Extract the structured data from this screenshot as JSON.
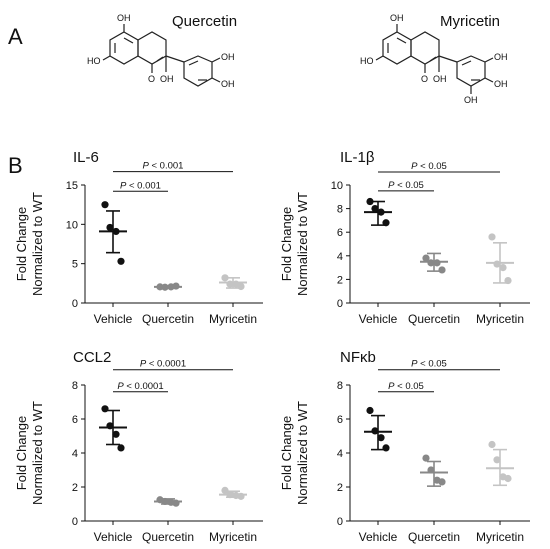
{
  "panels": {
    "a": "A",
    "b": "B"
  },
  "molecules": [
    {
      "name": "Quercetin",
      "atoms": [
        "OH",
        "HO",
        "O",
        "OH",
        "OH",
        "OH"
      ]
    },
    {
      "name": "Myricetin",
      "atoms": [
        "OH",
        "HO",
        "O",
        "OH",
        "OH",
        "OH",
        "OH"
      ]
    }
  ],
  "chart_data": [
    {
      "type": "scatter",
      "title": "IL-6",
      "ylabel": [
        "Fold Change",
        "Normalized to WT"
      ],
      "ylim": [
        0,
        15
      ],
      "yticks": [
        0,
        5,
        10,
        15
      ],
      "categories": [
        "Vehicle",
        "Quercetin",
        "Myricetin"
      ],
      "colors": [
        "#111111",
        "#888888",
        "#c4c4c4"
      ],
      "points": [
        [
          12.5,
          9.6,
          9.1,
          5.3
        ],
        [
          2.05,
          2.0,
          2.05,
          2.15
        ],
        [
          3.2,
          2.4,
          2.4,
          2.1
        ]
      ],
      "mean": [
        9.1,
        2.05,
        2.6
      ],
      "sd_upper": [
        11.7,
        2.2,
        3.2
      ],
      "sd_lower": [
        6.4,
        1.95,
        1.9
      ],
      "brackets": [
        {
          "from": 0,
          "to": 1,
          "y": 14.2,
          "label": "P < 0.001"
        },
        {
          "from": 0,
          "to": 2,
          "y": 16.7,
          "label": "P < 0.001"
        }
      ]
    },
    {
      "type": "scatter",
      "title": "IL-1β",
      "ylabel": [
        "Fold Change",
        "Normalized to WT"
      ],
      "ylim": [
        0,
        10
      ],
      "yticks": [
        0,
        2,
        4,
        6,
        8,
        10
      ],
      "categories": [
        "Vehicle",
        "Quercetin",
        "Myricetin"
      ],
      "colors": [
        "#111111",
        "#888888",
        "#c4c4c4"
      ],
      "points": [
        [
          8.6,
          8.0,
          7.7,
          6.8
        ],
        [
          3.8,
          3.4,
          3.4,
          2.8
        ],
        [
          5.6,
          3.3,
          3.0,
          1.9
        ]
      ],
      "mean": [
        7.7,
        3.5,
        3.4
      ],
      "sd_upper": [
        8.6,
        4.2,
        5.1
      ],
      "sd_lower": [
        6.6,
        2.7,
        1.7
      ],
      "brackets": [
        {
          "from": 0,
          "to": 1,
          "y": 9.5,
          "label": "P < 0.05"
        },
        {
          "from": 0,
          "to": 2,
          "y": 11.1,
          "label": "P < 0.05"
        }
      ]
    },
    {
      "type": "scatter",
      "title": "CCL2",
      "ylabel": [
        "Fold Change",
        "Normalized to WT"
      ],
      "ylim": [
        0,
        8
      ],
      "yticks": [
        0,
        2,
        4,
        6,
        8
      ],
      "categories": [
        "Vehicle",
        "Quercetin",
        "Myricetin"
      ],
      "colors": [
        "#111111",
        "#888888",
        "#c4c4c4"
      ],
      "points": [
        [
          6.6,
          5.6,
          5.1,
          4.3
        ],
        [
          1.25,
          1.15,
          1.1,
          1.05
        ],
        [
          1.8,
          1.55,
          1.5,
          1.45
        ]
      ],
      "mean": [
        5.5,
        1.15,
        1.55
      ],
      "sd_upper": [
        6.5,
        1.3,
        1.75
      ],
      "sd_lower": [
        4.5,
        1.0,
        1.4
      ],
      "brackets": [
        {
          "from": 0,
          "to": 1,
          "y": 7.6,
          "label": "P < 0.0001"
        },
        {
          "from": 0,
          "to": 2,
          "y": 8.9,
          "label": "P < 0.0001"
        }
      ]
    },
    {
      "type": "scatter",
      "title": "NFκb",
      "ylabel": [
        "Fold Change",
        "Normalized to WT"
      ],
      "ylim": [
        0,
        8
      ],
      "yticks": [
        0,
        2,
        4,
        6,
        8
      ],
      "categories": [
        "Vehicle",
        "Quercetin",
        "Myricetin"
      ],
      "colors": [
        "#111111",
        "#888888",
        "#c4c4c4"
      ],
      "points": [
        [
          6.5,
          5.3,
          4.9,
          4.3
        ],
        [
          3.7,
          3.0,
          2.4,
          2.3
        ],
        [
          4.5,
          3.6,
          2.6,
          2.5
        ]
      ],
      "mean": [
        5.25,
        2.85,
        3.1
      ],
      "sd_upper": [
        6.2,
        3.5,
        4.2
      ],
      "sd_lower": [
        4.2,
        2.05,
        2.1
      ],
      "brackets": [
        {
          "from": 0,
          "to": 1,
          "y": 7.6,
          "label": "P < 0.05"
        },
        {
          "from": 0,
          "to": 2,
          "y": 8.9,
          "label": "P < 0.05"
        }
      ]
    }
  ]
}
